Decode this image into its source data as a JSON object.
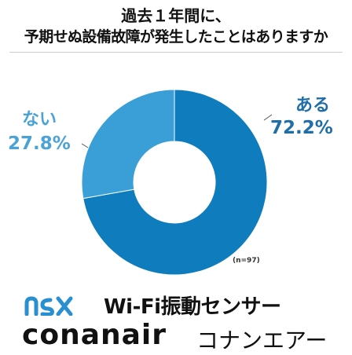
{
  "header": {
    "title_line1": "過去１年間に、",
    "title_line2": "予期せぬ設備故障が発生したことはありますか"
  },
  "chart_data": {
    "type": "pie",
    "title": "過去１年間に、予期せぬ設備故障が発生したことはありますか",
    "sample_size_label": "(n=97)",
    "slices": [
      {
        "label": "ある",
        "value": 72.2,
        "display": "72.2%",
        "color": "#0f7dbd"
      },
      {
        "label": "ない",
        "value": 27.8,
        "display": "27.8%",
        "color": "#3a9fd6"
      }
    ]
  },
  "footer": {
    "product_name": "Wi-Fi振動センサー",
    "brand_name": "conanair",
    "brand_kana": "コナンエアー",
    "logo_color": "#2a8fd0"
  }
}
